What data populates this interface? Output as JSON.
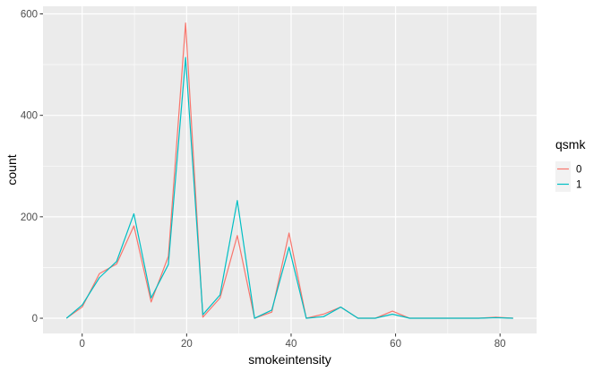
{
  "chart_data": {
    "type": "line",
    "title": "",
    "xlabel": "smokeintensity",
    "ylabel": "count",
    "xlim": [
      -7.5,
      87
    ],
    "ylim": [
      -30,
      615
    ],
    "x_ticks": [
      0,
      20,
      40,
      60,
      80
    ],
    "x_tick_labels": [
      "0",
      "20",
      "40",
      "60",
      "80"
    ],
    "x_minor_ticks": [
      -10,
      10,
      30,
      50,
      70
    ],
    "y_ticks": [
      0,
      200,
      400,
      600
    ],
    "y_tick_labels": [
      "0",
      "200",
      "400",
      "600"
    ],
    "y_minor_ticks": [
      100,
      300,
      500
    ],
    "grid": true,
    "background": "#ebebeb",
    "grid_color": "#ffffff",
    "legend": {
      "title": "qsmk",
      "position": "right",
      "entries": [
        "0",
        "1"
      ]
    },
    "x": [
      -3,
      0,
      3.3,
      6.6,
      9.9,
      13.2,
      16.5,
      19.8,
      23.1,
      26.4,
      29.7,
      33,
      36.3,
      39.6,
      42.9,
      46.2,
      49.5,
      52.8,
      56.1,
      59.4,
      62.7,
      66,
      69.3,
      72.6,
      75.9,
      79.2,
      82.5
    ],
    "series": [
      {
        "name": "0",
        "color": "#f8766d",
        "values": [
          0,
          22,
          88,
          107,
          182,
          32,
          122,
          582,
          2,
          40,
          163,
          0,
          12,
          168,
          0,
          8,
          22,
          0,
          0,
          14,
          0,
          0,
          0,
          0,
          0,
          2,
          0
        ]
      },
      {
        "name": "1",
        "color": "#00bfc4",
        "values": [
          0,
          26,
          80,
          112,
          206,
          40,
          106,
          514,
          7,
          46,
          232,
          0,
          16,
          140,
          0,
          3,
          22,
          0,
          0,
          8,
          0,
          0,
          0,
          0,
          0,
          1,
          0
        ]
      }
    ]
  }
}
